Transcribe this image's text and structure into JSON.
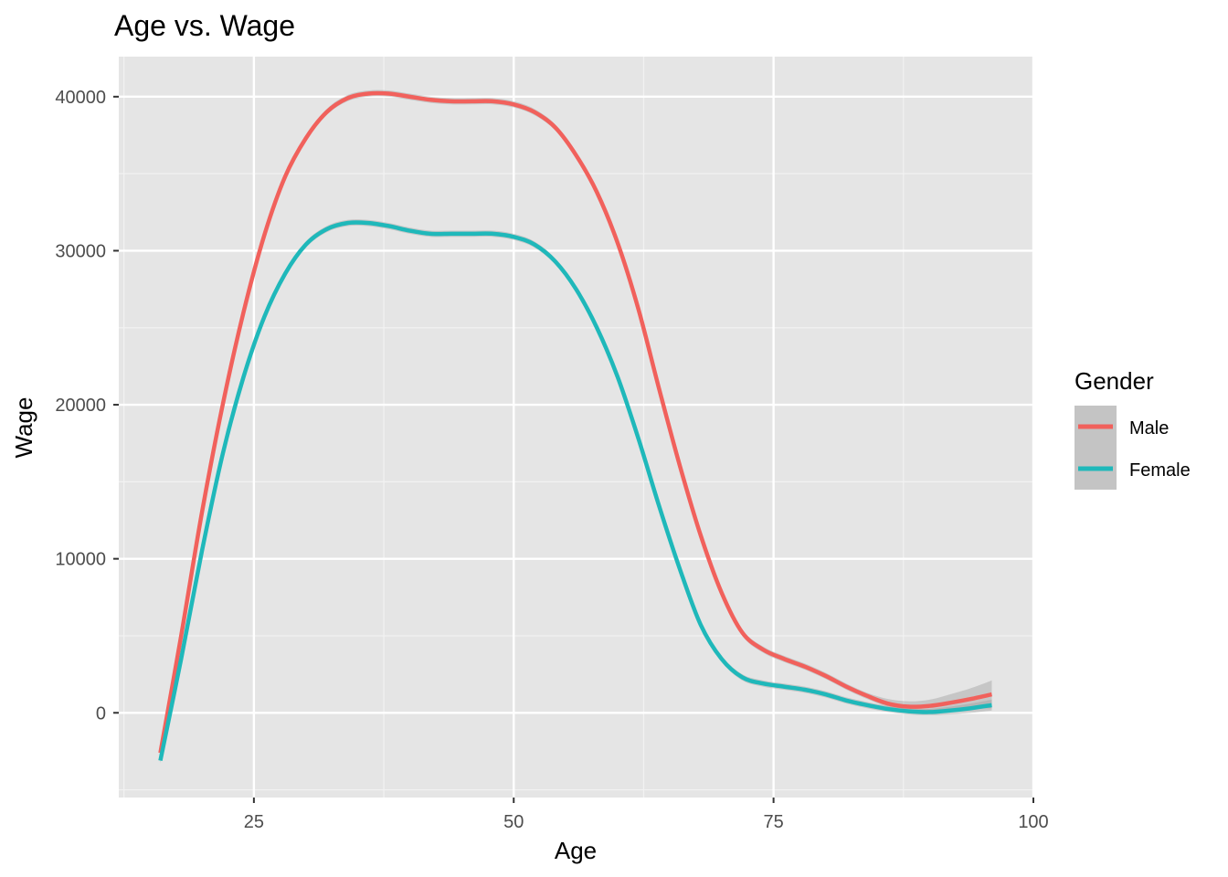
{
  "chart_data": {
    "type": "line",
    "title": "Age vs. Wage",
    "xlabel": "Age",
    "ylabel": "Wage",
    "xlim": [
      12,
      100
    ],
    "ylim": [
      -5500,
      42600
    ],
    "x_ticks": [
      25,
      50,
      75,
      100
    ],
    "y_ticks": [
      0,
      10000,
      20000,
      30000,
      40000
    ],
    "x_tick_labels": [
      "25",
      "50",
      "75",
      "100"
    ],
    "y_tick_labels": [
      "0",
      "10000",
      "20000",
      "30000",
      "40000"
    ],
    "grid": true,
    "legend": {
      "title": "Gender",
      "position": "right",
      "entries": [
        "Male",
        "Female"
      ]
    },
    "series": [
      {
        "name": "Male",
        "color": "#f1615c",
        "x": [
          16,
          18,
          20,
          22,
          24,
          26,
          28,
          30,
          32,
          34,
          36,
          38,
          40,
          42,
          44,
          46,
          48,
          50,
          52,
          54,
          56,
          58,
          60,
          62,
          64,
          66,
          68,
          70,
          72,
          74,
          76,
          78,
          80,
          82,
          84,
          86,
          88,
          90,
          92,
          94,
          96
        ],
        "y": [
          -2600,
          5000,
          13000,
          20000,
          26000,
          31000,
          34800,
          37300,
          39000,
          39900,
          40200,
          40200,
          40000,
          39800,
          39700,
          39700,
          39700,
          39500,
          39000,
          38000,
          36200,
          33800,
          30500,
          26200,
          21000,
          16000,
          11500,
          7800,
          5200,
          4100,
          3500,
          3000,
          2400,
          1700,
          1100,
          600,
          400,
          450,
          650,
          900,
          1200
        ],
        "band_lower": [
          -2800,
          4800,
          12800,
          19800,
          25800,
          30800,
          34600,
          37100,
          38800,
          39700,
          40000,
          40000,
          39800,
          39600,
          39500,
          39500,
          39500,
          39300,
          38800,
          37800,
          36000,
          33600,
          30300,
          26000,
          20800,
          15800,
          11300,
          7600,
          5000,
          3900,
          3300,
          2800,
          2200,
          1500,
          900,
          400,
          200,
          150,
          200,
          250,
          300
        ],
        "band_upper": [
          -2400,
          5200,
          13200,
          20200,
          26200,
          31200,
          35000,
          37500,
          39200,
          40100,
          40400,
          40400,
          40200,
          40000,
          39900,
          39900,
          39900,
          39700,
          39200,
          38200,
          36400,
          34000,
          30700,
          26400,
          21200,
          16200,
          11700,
          8000,
          5400,
          4300,
          3700,
          3200,
          2600,
          1900,
          1300,
          900,
          750,
          850,
          1200,
          1600,
          2100
        ]
      },
      {
        "name": "Female",
        "color": "#1fb8ba",
        "x": [
          16,
          18,
          20,
          22,
          24,
          26,
          28,
          30,
          32,
          34,
          36,
          38,
          40,
          42,
          44,
          46,
          48,
          50,
          52,
          54,
          56,
          58,
          60,
          62,
          64,
          66,
          68,
          70,
          72,
          74,
          76,
          78,
          80,
          82,
          84,
          86,
          88,
          90,
          92,
          94,
          96
        ],
        "y": [
          -3100,
          3500,
          10500,
          16800,
          21800,
          25700,
          28500,
          30400,
          31400,
          31800,
          31800,
          31600,
          31300,
          31100,
          31100,
          31100,
          31100,
          30900,
          30400,
          29300,
          27500,
          25000,
          21800,
          17800,
          13400,
          9300,
          5700,
          3500,
          2300,
          1900,
          1700,
          1500,
          1200,
          800,
          500,
          250,
          100,
          50,
          150,
          300,
          500
        ],
        "band_lower": [
          -3300,
          3300,
          10300,
          16600,
          21600,
          25500,
          28300,
          30200,
          31200,
          31600,
          31600,
          31400,
          31100,
          30900,
          30900,
          30900,
          30900,
          30700,
          30200,
          29100,
          27300,
          24800,
          21600,
          17600,
          13200,
          9100,
          5500,
          3300,
          2100,
          1700,
          1500,
          1300,
          1000,
          600,
          300,
          50,
          -100,
          -150,
          -100,
          0,
          150
        ],
        "band_upper": [
          -2900,
          3700,
          10700,
          17000,
          22000,
          25900,
          28700,
          30600,
          31600,
          32000,
          32000,
          31800,
          31500,
          31300,
          31300,
          31300,
          31300,
          31100,
          30600,
          29500,
          27700,
          25200,
          22000,
          18000,
          13600,
          9500,
          5900,
          3700,
          2500,
          2100,
          1900,
          1700,
          1400,
          1000,
          700,
          450,
          300,
          250,
          400,
          600,
          850
        ]
      }
    ]
  }
}
